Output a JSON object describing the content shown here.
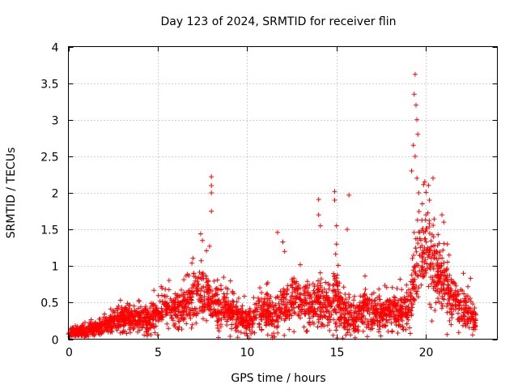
{
  "chart_data": {
    "type": "scatter",
    "title": "Day 123 of 2024, SRMTID for receiver flin",
    "xlabel": "GPS time / hours",
    "ylabel": "SRMTID / TECUs",
    "xlim": [
      0,
      24
    ],
    "ylim": [
      0,
      4
    ],
    "x_ticks": [
      0,
      5,
      10,
      15,
      20
    ],
    "x_tick_labels": [
      "0",
      "5",
      "10",
      "15",
      "20"
    ],
    "y_ticks": [
      0,
      0.5,
      1,
      1.5,
      2,
      2.5,
      3,
      3.5,
      4
    ],
    "y_tick_labels": [
      "0",
      "0.5",
      "1",
      "1.5",
      "2",
      "2.5",
      "3",
      "3.5",
      "4"
    ],
    "grid": true,
    "legend": "none",
    "marker": "+",
    "series": [
      {
        "name": "SRMTID",
        "color": "#ff0000",
        "profile_hours": [
          0,
          0.5,
          1,
          1.5,
          2,
          2.5,
          3,
          3.5,
          4,
          4.5,
          5,
          5.5,
          6,
          6.5,
          7,
          7.5,
          8,
          8.5,
          9,
          9.5,
          10,
          10.5,
          11,
          11.5,
          12,
          12.5,
          13,
          13.5,
          14,
          14.5,
          15,
          15.5,
          16,
          16.5,
          17,
          17.5,
          18,
          18.5,
          19,
          19.5,
          20,
          20.5,
          21,
          21.5,
          22,
          22.5,
          22.8
        ],
        "profile_median": [
          0.08,
          0.09,
          0.12,
          0.15,
          0.2,
          0.24,
          0.28,
          0.3,
          0.27,
          0.25,
          0.35,
          0.45,
          0.42,
          0.45,
          0.6,
          0.6,
          0.5,
          0.45,
          0.35,
          0.3,
          0.25,
          0.3,
          0.4,
          0.3,
          0.45,
          0.5,
          0.55,
          0.45,
          0.5,
          0.45,
          0.55,
          0.35,
          0.3,
          0.4,
          0.35,
          0.4,
          0.38,
          0.35,
          0.4,
          0.9,
          1.2,
          1.0,
          0.7,
          0.55,
          0.4,
          0.35,
          0.25
        ],
        "profile_spread": [
          0.05,
          0.06,
          0.07,
          0.08,
          0.1,
          0.12,
          0.14,
          0.15,
          0.15,
          0.16,
          0.2,
          0.24,
          0.22,
          0.25,
          0.35,
          0.35,
          0.3,
          0.25,
          0.2,
          0.18,
          0.16,
          0.18,
          0.22,
          0.25,
          0.25,
          0.28,
          0.3,
          0.26,
          0.3,
          0.28,
          0.35,
          0.25,
          0.2,
          0.22,
          0.2,
          0.2,
          0.2,
          0.2,
          0.25,
          0.6,
          0.6,
          0.45,
          0.35,
          0.28,
          0.22,
          0.2,
          0.12
        ],
        "peaks": [
          {
            "x": 7.4,
            "y": 1.44
          },
          {
            "x": 7.5,
            "y": 1.35
          },
          {
            "x": 8.0,
            "y": 2.22
          },
          {
            "x": 8.0,
            "y": 2.1
          },
          {
            "x": 8.0,
            "y": 2.0
          },
          {
            "x": 8.0,
            "y": 1.75
          },
          {
            "x": 7.9,
            "y": 1.27
          },
          {
            "x": 11.7,
            "y": 1.46
          },
          {
            "x": 12.0,
            "y": 1.33
          },
          {
            "x": 12.1,
            "y": 1.2
          },
          {
            "x": 14.0,
            "y": 1.91
          },
          {
            "x": 14.0,
            "y": 1.7
          },
          {
            "x": 14.1,
            "y": 1.55
          },
          {
            "x": 14.9,
            "y": 2.02
          },
          {
            "x": 14.9,
            "y": 1.9
          },
          {
            "x": 15.0,
            "y": 1.55
          },
          {
            "x": 15.0,
            "y": 1.3
          },
          {
            "x": 15.7,
            "y": 1.97
          },
          {
            "x": 15.6,
            "y": 1.5
          },
          {
            "x": 19.4,
            "y": 3.62
          },
          {
            "x": 19.35,
            "y": 3.35
          },
          {
            "x": 19.45,
            "y": 3.2
          },
          {
            "x": 19.5,
            "y": 3.0
          },
          {
            "x": 19.55,
            "y": 2.8
          },
          {
            "x": 19.3,
            "y": 2.65
          },
          {
            "x": 19.4,
            "y": 2.5
          },
          {
            "x": 19.2,
            "y": 2.3
          },
          {
            "x": 19.5,
            "y": 2.2
          },
          {
            "x": 19.6,
            "y": 2.0
          },
          {
            "x": 19.8,
            "y": 1.85
          },
          {
            "x": 20.0,
            "y": 1.7
          },
          {
            "x": 20.4,
            "y": 2.2
          },
          {
            "x": 20.2,
            "y": 1.9
          },
          {
            "x": 20.9,
            "y": 1.7
          },
          {
            "x": 21.0,
            "y": 1.6
          },
          {
            "x": 21.2,
            "y": 1.3
          },
          {
            "x": 21.3,
            "y": 1.15
          },
          {
            "x": 22.1,
            "y": 0.9
          },
          {
            "x": 22.5,
            "y": 0.83
          }
        ],
        "points_count": 2600
      }
    ]
  }
}
